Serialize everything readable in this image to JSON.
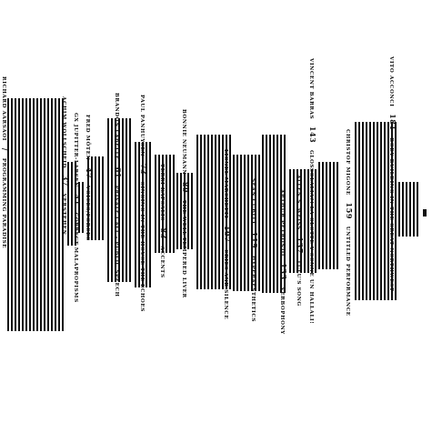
{
  "entries": [
    {
      "name": "Richard Aarsaoi",
      "num": "/",
      "title": "Programming Paradise"
    },
    {
      "name": "Achim Wollscheid",
      "num": "37",
      "title": "Verstehen"
    },
    {
      "name": "GX Jupitter-Larsen",
      "num": "41",
      "title": "Correct Malapropisms"
    },
    {
      "name": "Fred Möten",
      "num": "47",
      "title": "Voices/Forces"
    },
    {
      "name": "Brandon LaBelle",
      "num": "61",
      "title": "Private Call - Public Speech"
    },
    {
      "name": "Paul Panhuysen",
      "num": "73",
      "title": "Singing in the House the Echoes"
    },
    {
      "name": "Terri Kapsalis",
      "num": "83",
      "title": "Accents"
    },
    {
      "name": "Bonnie Neumann",
      "num": "89",
      "title": "The Well-Tempered Liver"
    },
    {
      "name": "Lionel Marchetti",
      "num": "107",
      "title": "Cries and Silence"
    },
    {
      "name": "Sean Cubitt",
      "num": "119",
      "title": "Hyperaesthetics"
    },
    {
      "name": "Arthur Petronio",
      "num": "133",
      "title": "Verbophony"
    },
    {
      "name": "Allen S. Weiss",
      "num": "137",
      "title": "Lulu's Song"
    },
    {
      "name": "Vincent Barras",
      "num": "143",
      "title": "Glossolalia?! La Glotte y Sonne un Hallali!"
    },
    {
      "name": "Christof Migone",
      "num": "159",
      "title": "Untitled Performance"
    },
    {
      "name": "Vito Acconci",
      "num": "181",
      "title": "Body-Building in the Great Northwest"
    }
  ]
}
